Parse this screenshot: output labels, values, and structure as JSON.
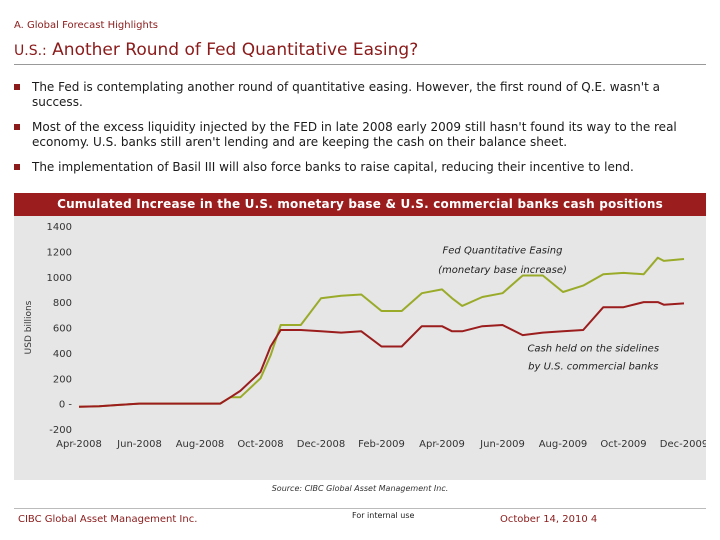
{
  "header": {
    "section": "A. Global Forecast Highlights",
    "title_prefix": "U.S.:",
    "title": "Another Round of Fed Quantitative Easing?"
  },
  "bullets": [
    "The Fed is contemplating another round of quantitative easing.  However, the first round of Q.E. wasn't a success.",
    "Most of the excess liquidity injected by the FED in late 2008 early 2009 still hasn't found its way to the real economy. U.S. banks still aren't lending and are keeping the cash on their balance sheet.",
    "The implementation of Basil III will also force banks to raise capital, reducing their incentive to lend."
  ],
  "colors": {
    "accent": "#8b1a1a",
    "chart_title_bg": "#9b1d1d",
    "series_monetary_base": "#9aab2a",
    "series_cash": "#9b1d1d",
    "plot_bg": "#e6e6e6"
  },
  "chart_data": {
    "type": "line",
    "title": "Cumulated Increase in the U.S. monetary base & U.S. commercial banks cash positions",
    "ylabel": "USD billions",
    "xlabel": "",
    "ylim": [
      -200,
      1400
    ],
    "yticks": [
      1400,
      1200,
      1000,
      800,
      600,
      400,
      200,
      0,
      -200
    ],
    "ytick_labels": [
      "1400",
      "1200",
      "1000",
      "800",
      "600",
      "400",
      "200",
      "0 -",
      "-200"
    ],
    "xlim": [
      0,
      30
    ],
    "xtick_labels": [
      "Apr-2008",
      "Jun-2008",
      "Aug-2008",
      "Oct-2008",
      "Dec-2008",
      "Feb-2009",
      "Apr-2009",
      "Jun-2009",
      "Aug-2009",
      "Oct-2009",
      "Dec-2009"
    ],
    "annotations": [
      {
        "text": "Fed Quantitative Easing",
        "x": 21.0,
        "y": 1185
      },
      {
        "text": "(monetary base increase)",
        "x": 21.0,
        "y": 1030
      },
      {
        "text": "Cash held on the sidelines",
        "x": 25.5,
        "y": 410
      },
      {
        "text": "by U.S. commercial banks",
        "x": 25.5,
        "y": 270
      }
    ],
    "series": [
      {
        "name": "Fed Quantitative Easing (monetary base increase)",
        "x": [
          0,
          1,
          2,
          3,
          4,
          5,
          6,
          7,
          7.5,
          8,
          9,
          9.5,
          10,
          11,
          12,
          13,
          14,
          15,
          16,
          17,
          18,
          18.5,
          19,
          20,
          21,
          22,
          23,
          24,
          25,
          26,
          27,
          28,
          28.7,
          29,
          30
        ],
        "values": [
          -25,
          -20,
          -10,
          0,
          0,
          0,
          0,
          0,
          50,
          50,
          200,
          380,
          620,
          620,
          830,
          850,
          860,
          730,
          730,
          870,
          900,
          830,
          770,
          840,
          870,
          1010,
          1010,
          880,
          930,
          1020,
          1030,
          1020,
          1150,
          1125,
          1140
        ]
      },
      {
        "name": "Cash held on the sidelines by U.S. commercial banks",
        "x": [
          0,
          1,
          2,
          3,
          4,
          5,
          6,
          7,
          7.5,
          8,
          9,
          9.5,
          10,
          11,
          12,
          13,
          14,
          15,
          16,
          17,
          18,
          18.5,
          19,
          20,
          21,
          22,
          23,
          24,
          25,
          26,
          27,
          28,
          28.7,
          29,
          30
        ],
        "values": [
          -25,
          -20,
          -10,
          0,
          0,
          0,
          0,
          0,
          50,
          100,
          250,
          450,
          580,
          580,
          570,
          560,
          570,
          450,
          450,
          610,
          610,
          570,
          570,
          610,
          620,
          540,
          560,
          570,
          580,
          760,
          760,
          800,
          800,
          780,
          790
        ]
      }
    ],
    "grid": false,
    "legend": "none",
    "source": "Source: CIBC Global Asset Management Inc."
  },
  "footer": {
    "left": "CIBC Global Asset Management Inc.",
    "middle": "For internal use",
    "right": "October 14, 2010  4"
  }
}
